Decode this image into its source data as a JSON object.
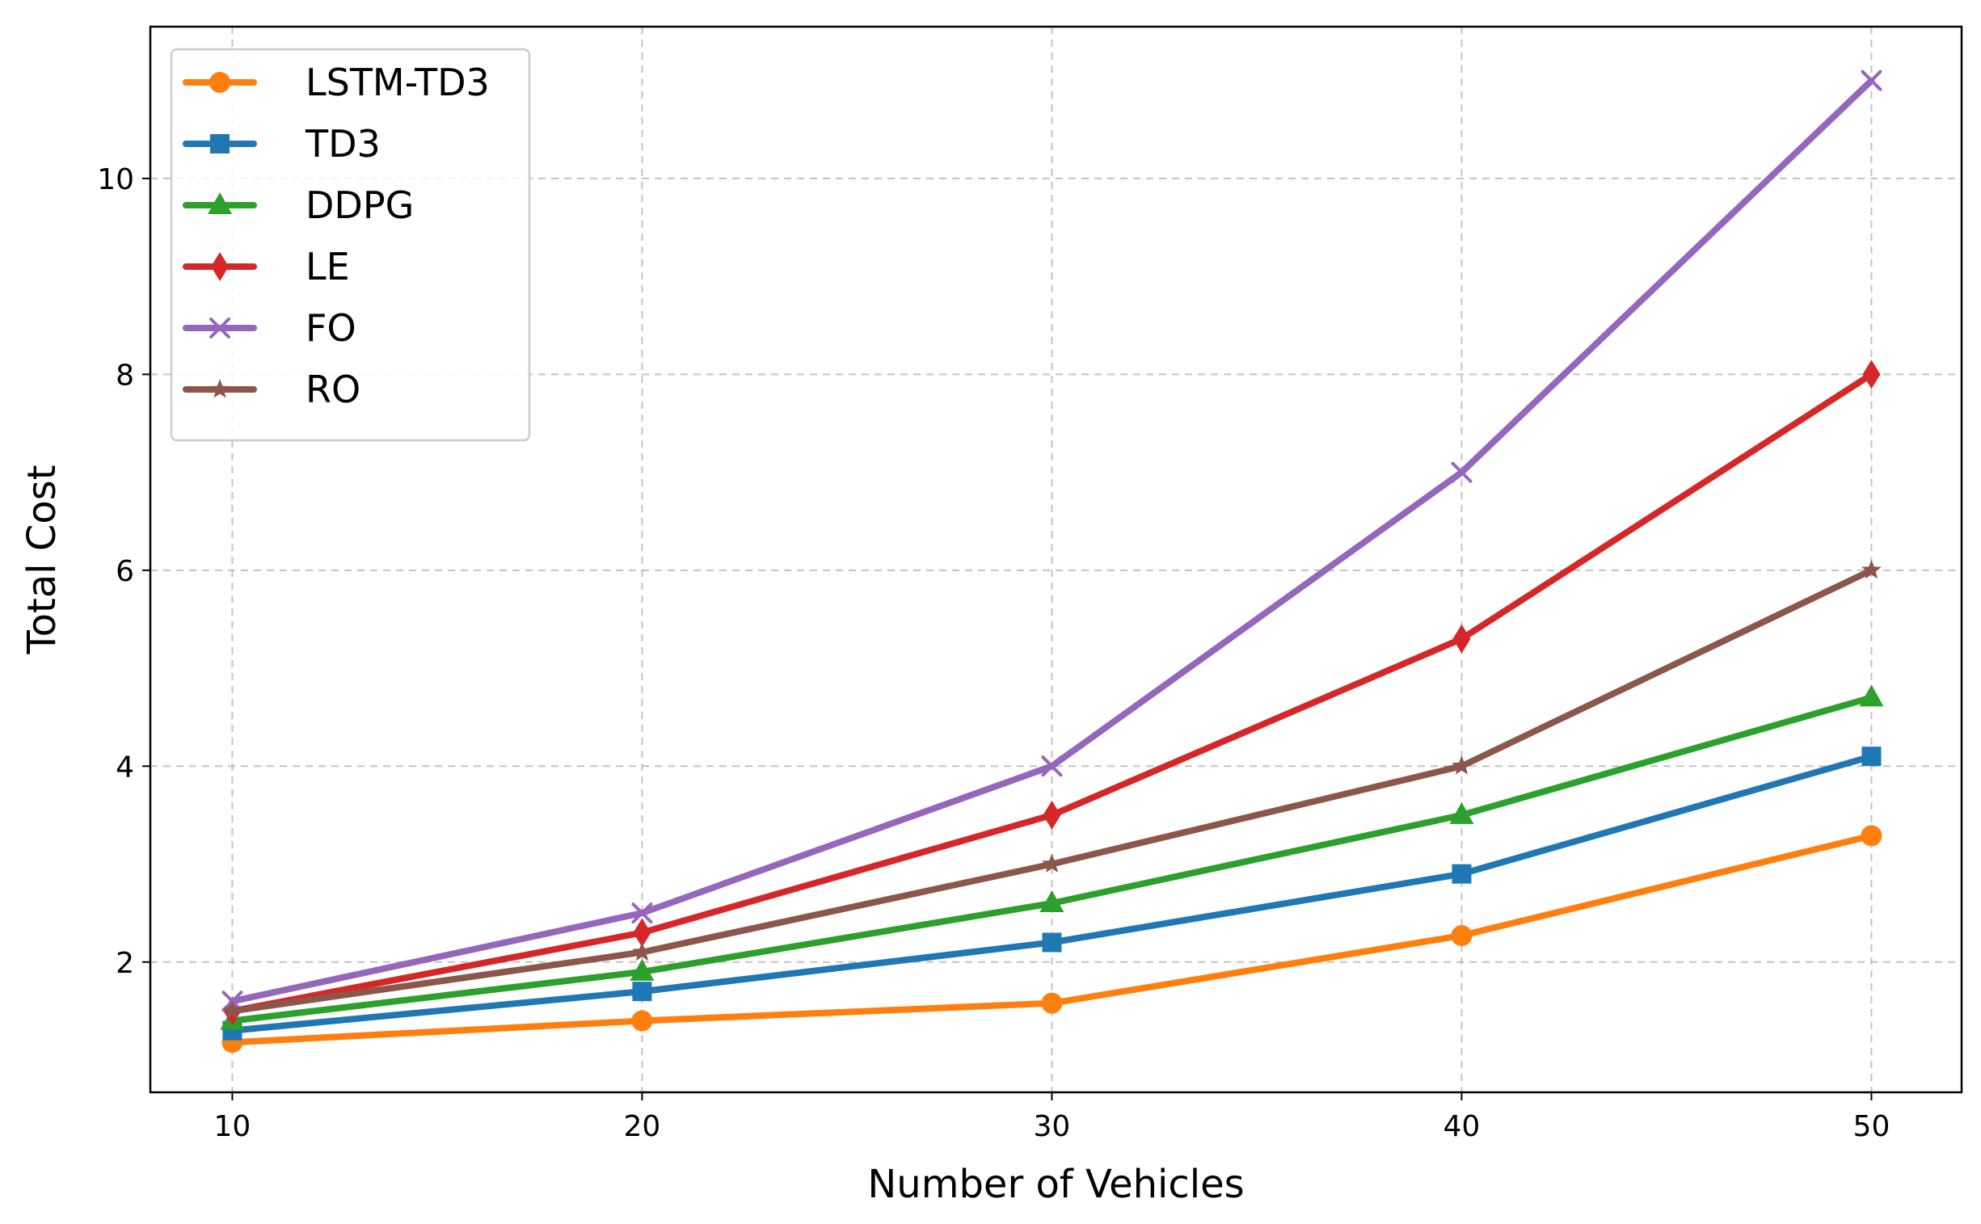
{
  "chart_data": {
    "type": "line",
    "title": "",
    "xlabel": "Number of Vehicles",
    "ylabel": "Total Cost",
    "x": [
      10,
      20,
      30,
      40,
      50
    ],
    "xlim": [
      8,
      52.2
    ],
    "ylim": [
      0.67,
      11.55
    ],
    "xticks": [
      10,
      20,
      30,
      40,
      50
    ],
    "yticks": [
      2,
      4,
      6,
      8,
      10
    ],
    "grid": true,
    "legend_position": "top-left",
    "series": [
      {
        "name": "LSTM-TD3",
        "values": [
          1.18,
          1.4,
          1.58,
          2.27,
          3.29
        ],
        "color": "#ff7f0e",
        "marker": "circle"
      },
      {
        "name": "TD3",
        "values": [
          1.3,
          1.7,
          2.2,
          2.9,
          4.1
        ],
        "color": "#1f77b4",
        "marker": "square"
      },
      {
        "name": "DDPG",
        "values": [
          1.4,
          1.9,
          2.6,
          3.5,
          4.7
        ],
        "color": "#2ca02c",
        "marker": "triangle"
      },
      {
        "name": "LE",
        "values": [
          1.5,
          2.3,
          3.5,
          5.3,
          8.0
        ],
        "color": "#d62728",
        "marker": "diamond"
      },
      {
        "name": "FO",
        "values": [
          1.6,
          2.5,
          4.0,
          7.0,
          11.0
        ],
        "color": "#9467bd",
        "marker": "x"
      },
      {
        "name": "RO",
        "values": [
          1.5,
          2.1,
          3.0,
          4.0,
          6.0
        ],
        "color": "#8c564b",
        "marker": "star"
      }
    ]
  }
}
